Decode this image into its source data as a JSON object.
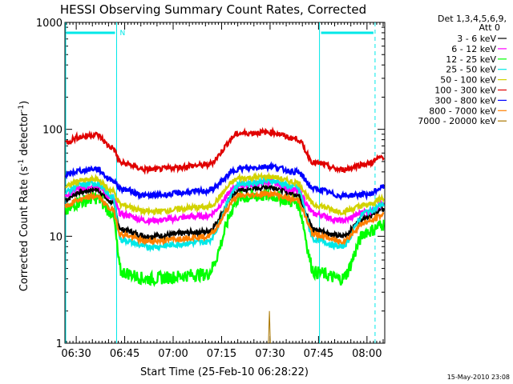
{
  "chart_data": {
    "type": "line",
    "title": "HESSI Observing Summary Count Rates, Corrected",
    "xlabel": "Start Time (25-Feb-10 06:28:22)",
    "ylabel_main": "Corrected Count Rate (s",
    "ylabel_sup1": "-1",
    "ylabel_mid": " detector",
    "ylabel_sup2": "-1",
    "ylabel_end": ")",
    "footer_date": "15-May-2010 23:08",
    "x_range_minutes": [
      386.5,
      485.5
    ],
    "y_scale": "log",
    "y_range": [
      1,
      1000
    ],
    "x_ticks": [
      {
        "label": "06:30",
        "minute": 390
      },
      {
        "label": "06:45",
        "minute": 405
      },
      {
        "label": "07:00",
        "minute": 420
      },
      {
        "label": "07:15",
        "minute": 435
      },
      {
        "label": "07:30",
        "minute": 450
      },
      {
        "label": "07:45",
        "minute": 465
      },
      {
        "label": "08:00",
        "minute": 480
      }
    ],
    "y_ticks": [
      {
        "label": "1",
        "value": 1
      },
      {
        "label": "10",
        "value": 10
      },
      {
        "label": "100",
        "value": 100
      },
      {
        "label": "1000",
        "value": 1000
      }
    ],
    "legend_header": [
      "Det 1,3,4,5,6,9,",
      "Att 0"
    ],
    "night_intervals": [
      {
        "start_minute": 386.5,
        "end_minute": 402.5,
        "label": "N"
      },
      {
        "start_minute": 465.3,
        "end_minute": 482.5,
        "label": ""
      }
    ],
    "series": [
      {
        "name": "3 - 6 keV",
        "color": "#000000",
        "day": [
          22,
          26,
          29,
          27,
          25,
          21,
          18,
          18
        ],
        "night": 10
      },
      {
        "name": "6 - 12 keV",
        "color": "#ff00ff",
        "day": [
          24,
          28,
          32,
          30,
          27,
          23,
          20,
          20
        ],
        "night": 14
      },
      {
        "name": "12 - 25 keV",
        "color": "#00ff00",
        "day": [
          17,
          21,
          24,
          23,
          21,
          17,
          13,
          13
        ],
        "night": 4
      },
      {
        "name": "25 - 50 keV",
        "color": "#00e8e8",
        "day": [
          26,
          30,
          33,
          31,
          29,
          24,
          20,
          20
        ],
        "night": 8
      },
      {
        "name": "50 - 100 keV",
        "color": "#d2d200",
        "day": [
          29,
          33,
          36,
          35,
          32,
          27,
          23,
          23
        ],
        "night": 17
      },
      {
        "name": "100 - 300 keV",
        "color": "#e00000",
        "day": [
          75,
          85,
          94,
          92,
          82,
          68,
          56,
          56
        ],
        "night": 42
      },
      {
        "name": "300 - 800 keV",
        "color": "#0000ff",
        "day": [
          37,
          41,
          45,
          43,
          40,
          34,
          29,
          29
        ],
        "night": 24
      },
      {
        "name": "800 - 7000 keV",
        "color": "#ff7f00",
        "day": [
          19,
          22,
          25,
          24,
          22,
          18,
          16,
          16
        ],
        "night": 9
      },
      {
        "name": "7000 - 20000 keV",
        "color": "#aa7700",
        "day": [
          1,
          1,
          1,
          1,
          1,
          1,
          1,
          1
        ],
        "night": 1
      }
    ],
    "day_profile_minutes": [
      387,
      391,
      394,
      397,
      399,
      401,
      402,
      403
    ]
  }
}
